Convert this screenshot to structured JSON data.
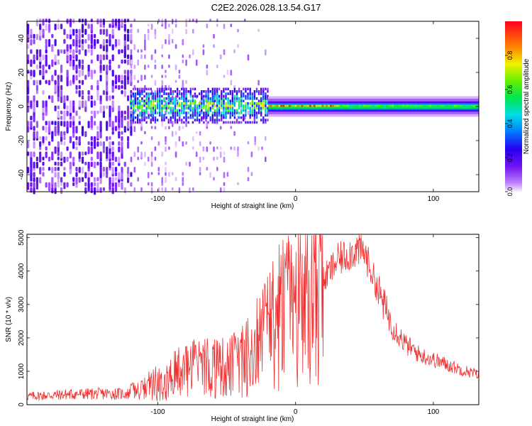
{
  "title": "C2E2.2026.028.13.54.G17",
  "chart_data": [
    {
      "type": "heatmap",
      "xlabel": "Height of straight line (km)",
      "ylabel": "Frequency (Hz)",
      "xlim": [
        -195,
        133
      ],
      "ylim": [
        -50,
        50
      ],
      "xticks": [
        -100,
        0,
        100
      ],
      "xtick_labels": [
        "-100",
        "0",
        "100"
      ],
      "yticks": [
        -40,
        -20,
        0,
        20,
        40
      ],
      "ytick_labels": [
        "-40",
        "-20",
        "0",
        "20",
        "40"
      ],
      "colorbar": {
        "label": "Normalized spectral amplitude",
        "range": [
          0,
          1
        ],
        "ticks": [
          0.0,
          0.2,
          0.4,
          0.6,
          0.8
        ],
        "tick_labels": [
          "0.0",
          "0.2",
          "0.4",
          "0.6",
          "0.8"
        ]
      },
      "features": [
        {
          "region": "noise",
          "x_range": [
            -195,
            -120
          ],
          "freq_range": [
            -50,
            50
          ],
          "amplitude": 0.12
        },
        {
          "region": "fading noise",
          "x_range": [
            -120,
            -20
          ],
          "freq_range": [
            -50,
            50
          ],
          "amplitude": 0.05
        },
        {
          "region": "broadened signal",
          "x_range": [
            -120,
            -20
          ],
          "freq_range": [
            -10,
            10
          ],
          "amplitude": 0.45
        },
        {
          "region": "carrier line",
          "x_range": [
            -20,
            133
          ],
          "freq_range": [
            -3,
            3
          ],
          "amplitude": 0.9
        }
      ]
    },
    {
      "type": "line",
      "xlabel": "Height of straight line (km)",
      "ylabel": "SNR (10 * v/v)",
      "xlim": [
        -195,
        133
      ],
      "ylim": [
        0,
        5100
      ],
      "xticks": [
        -100,
        0,
        100
      ],
      "xtick_labels": [
        "-100",
        "0",
        "100"
      ],
      "yticks": [
        0,
        1000,
        2000,
        3000,
        4000,
        5000
      ],
      "ytick_labels": [
        "0",
        "1000",
        "2000",
        "3000",
        "4000",
        "5000"
      ],
      "color": "#f03030",
      "series": [
        {
          "name": "SNR",
          "x": [
            -195,
            -180,
            -160,
            -140,
            -120,
            -110,
            -100,
            -90,
            -80,
            -70,
            -60,
            -50,
            -40,
            -30,
            -20,
            -10,
            0,
            10,
            20,
            30,
            40,
            45,
            50,
            55,
            60,
            70,
            80,
            90,
            100,
            110,
            120,
            133
          ],
          "y": [
            250,
            280,
            320,
            330,
            330,
            450,
            650,
            850,
            1000,
            1050,
            1100,
            1100,
            1250,
            1600,
            2200,
            2700,
            2900,
            3200,
            3700,
            4300,
            4550,
            4650,
            4550,
            4000,
            3400,
            2400,
            1800,
            1500,
            1350,
            1200,
            1050,
            900
          ]
        }
      ]
    }
  ]
}
